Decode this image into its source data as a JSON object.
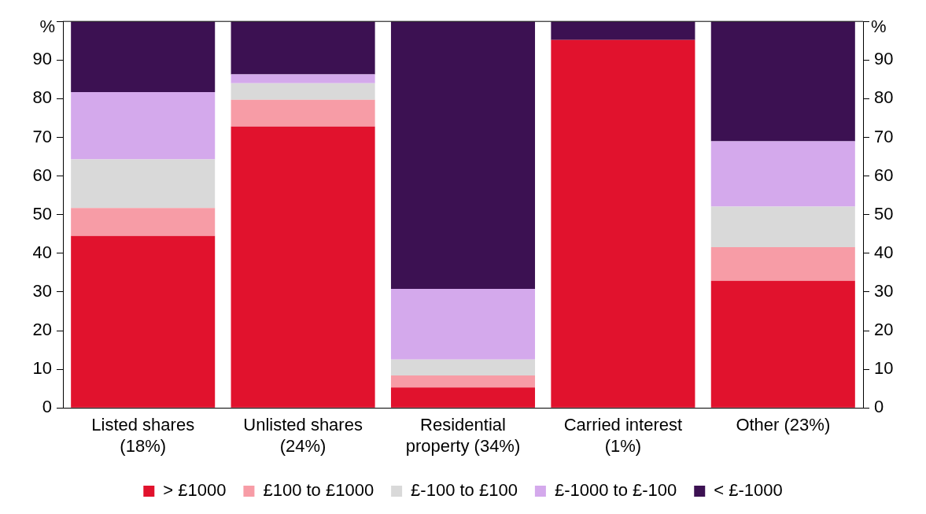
{
  "chart_data": {
    "type": "bar",
    "stacked": true,
    "ylabel": "%",
    "y2label": "%",
    "categories": [
      "Listed shares (18%)",
      "Unlisted shares (24%)",
      "Residential property (34%)",
      "Carried interest (1%)",
      "Other (23%)"
    ],
    "series": [
      {
        "name": "> £1000",
        "color": "#e1122d",
        "values": [
          44.5,
          72.8,
          5.3,
          95.2,
          32.9
        ]
      },
      {
        "name": "£100 to £1000",
        "color": "#f79ca6",
        "values": [
          7.2,
          6.9,
          3.1,
          0,
          8.7
        ]
      },
      {
        "name": "£-100 to £100",
        "color": "#d9d9d9",
        "values": [
          12.6,
          4.3,
          4.1,
          0,
          10.5
        ]
      },
      {
        "name": "£-1000 to £-100",
        "color": "#d4a9ec",
        "values": [
          17.4,
          2.3,
          18.3,
          0,
          16.9
        ]
      },
      {
        "name": "< £-1000",
        "color": "#3c1152",
        "values": [
          18.3,
          13.7,
          69.2,
          4.8,
          31.0
        ]
      }
    ],
    "ylim": [
      0,
      100
    ],
    "yticks": [
      0,
      10,
      20,
      30,
      40,
      50,
      60,
      70,
      80,
      90
    ],
    "y2lim": [
      0,
      100
    ],
    "y2ticks": [
      0,
      10,
      20,
      30,
      40,
      50,
      60,
      70,
      80,
      90
    ],
    "grid": false,
    "legend": "bottom"
  }
}
